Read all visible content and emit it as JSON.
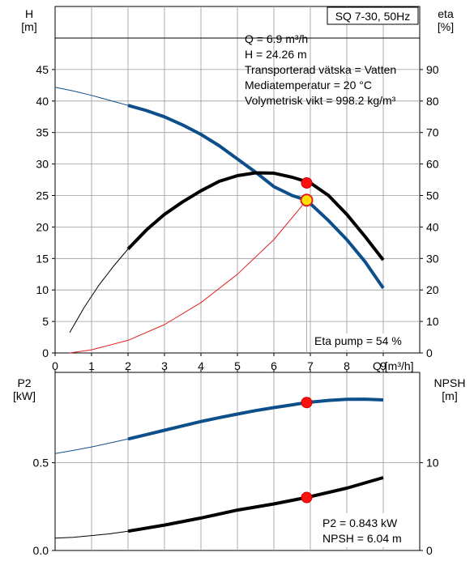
{
  "chart_data": [
    {
      "type": "line",
      "title": "SQ 7-30, 50Hz",
      "xlabel": "Q [m³/h]",
      "ylabel_left_name": "H",
      "ylabel_left_unit": "[m]",
      "ylabel_right_name": "eta",
      "ylabel_right_unit": "[%]",
      "xlim": [
        0,
        9.5
      ],
      "ylim_left": [
        0,
        50
      ],
      "ylim_right": [
        0,
        100
      ],
      "x_ticks": [
        0,
        1,
        2,
        3,
        4,
        5,
        6,
        7,
        8,
        9
      ],
      "y_ticks_left": [
        0,
        5,
        10,
        15,
        20,
        25,
        30,
        35,
        40,
        45
      ],
      "y_ticks_right": [
        0,
        10,
        20,
        30,
        40,
        50,
        60,
        70,
        80,
        90
      ],
      "grid": true,
      "info_lines": [
        "Q = 6.9 m³/h",
        "H = 24.26 m",
        "Transporterad vätska = Vatten",
        "Mediatemperatur = 20 °C",
        "Volymetrisk vikt = 998.2 kg/m³"
      ],
      "eta_label": "Eta pump = 54 %",
      "series": [
        {
          "key": "head",
          "axis": "left",
          "color": "#0d4f8b",
          "thin_x": [
            0,
            0.5,
            1,
            1.5,
            2
          ],
          "thin_y": [
            42.2,
            41.6,
            40.9,
            40.1,
            39.3
          ],
          "x": [
            2,
            2.5,
            3,
            3.5,
            4,
            4.5,
            5,
            5.5,
            6,
            6.5,
            6.9,
            7.5,
            8,
            8.5,
            9
          ],
          "y": [
            39.3,
            38.5,
            37.5,
            36.2,
            34.7,
            32.9,
            30.8,
            28.7,
            26.4,
            25.0,
            24.26,
            21.0,
            18.0,
            14.5,
            10.3
          ]
        },
        {
          "key": "eta",
          "axis": "right",
          "color": "#000000",
          "thin_x": [
            0.4,
            0.8,
            1.2,
            1.6,
            2
          ],
          "thin_y": [
            6.5,
            14.5,
            21.5,
            27.5,
            33
          ],
          "x": [
            2,
            2.5,
            3,
            3.5,
            4,
            4.5,
            5,
            5.5,
            6,
            6.5,
            7,
            7.5,
            8,
            8.5,
            9
          ],
          "y": [
            33,
            39,
            44,
            48,
            51.5,
            54.5,
            56.3,
            57.2,
            57.1,
            55.8,
            54,
            50,
            44,
            37,
            29.5
          ]
        },
        {
          "key": "system",
          "axis": "left",
          "color": "#e02020",
          "x": [
            0.4,
            1,
            2,
            3,
            4,
            5,
            6,
            6.9
          ],
          "y": [
            0,
            0.5,
            2,
            4.5,
            8,
            12.5,
            18,
            24.26
          ]
        }
      ],
      "markers": [
        {
          "axis": "right",
          "x": 6.9,
          "y": 54,
          "style": "red"
        },
        {
          "axis": "left",
          "x": 6.9,
          "y": 24.26,
          "style": "yellow"
        }
      ]
    },
    {
      "type": "line",
      "ylabel_left_name": "P2",
      "ylabel_left_unit": "[kW]",
      "ylabel_right_name": "NPSH",
      "ylabel_right_unit": "[m]",
      "xlim": [
        0,
        9.5
      ],
      "ylim_left": [
        0,
        1.12
      ],
      "ylim_right": [
        0,
        20
      ],
      "y_ticks_left": [
        0,
        0.5
      ],
      "y_tick_labels_left": [
        "0.0",
        "0.5"
      ],
      "y_ticks_right": [
        0,
        10
      ],
      "grid": true,
      "info_lines": [
        "P2 = 0.843 kW",
        "NPSH = 6.04 m"
      ],
      "series": [
        {
          "key": "p2",
          "axis": "left",
          "color": "#0d4f8b",
          "thin_x": [
            0,
            0.5,
            1,
            1.5,
            2
          ],
          "thin_y": [
            0.552,
            0.57,
            0.59,
            0.612,
            0.635
          ],
          "x": [
            2,
            2.5,
            3,
            3.5,
            4,
            4.5,
            5,
            5.5,
            6,
            6.5,
            6.9,
            7.5,
            8,
            8.5,
            9
          ],
          "y": [
            0.635,
            0.66,
            0.685,
            0.71,
            0.735,
            0.757,
            0.777,
            0.797,
            0.814,
            0.83,
            0.843,
            0.855,
            0.861,
            0.862,
            0.858
          ]
        },
        {
          "key": "npsh",
          "axis": "right",
          "color": "#000000",
          "thin_x": [
            0,
            0.5,
            1,
            1.5,
            2
          ],
          "thin_y": [
            1.4,
            1.5,
            1.7,
            1.9,
            2.2
          ],
          "x": [
            2,
            3,
            4,
            5,
            6,
            6.9,
            8,
            9
          ],
          "y": [
            2.2,
            2.9,
            3.7,
            4.6,
            5.3,
            6.04,
            7.1,
            8.3
          ]
        }
      ],
      "markers": [
        {
          "axis": "left",
          "x": 6.9,
          "y": 0.843,
          "style": "red"
        },
        {
          "axis": "right",
          "x": 6.9,
          "y": 6.04,
          "style": "red"
        }
      ]
    }
  ]
}
